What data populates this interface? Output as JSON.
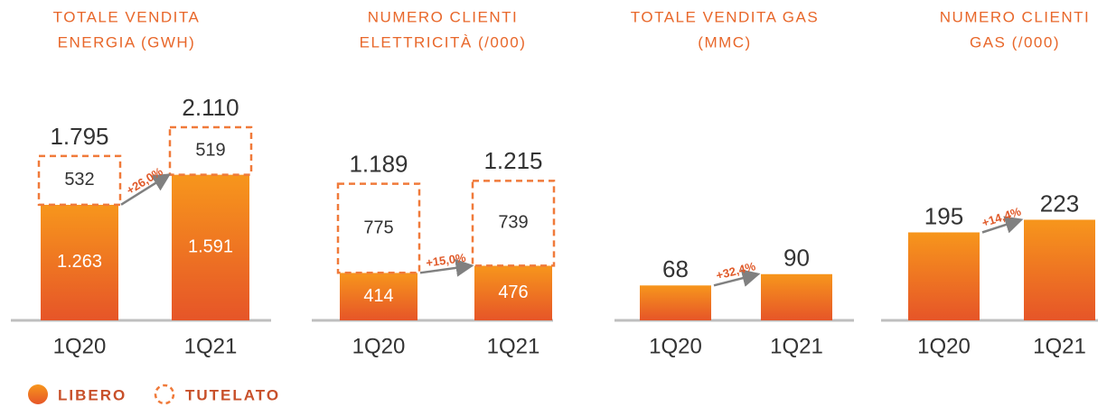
{
  "chart_data": [
    {
      "type": "bar",
      "title_lines": [
        "TOTALE VENDITA",
        "ENERGIA (GWH)"
      ],
      "categories": [
        "1Q20",
        "1Q21"
      ],
      "series": [
        {
          "name": "LIBERO",
          "color": "#f08a20",
          "values": [
            1263,
            1591
          ],
          "value_labels": [
            "1.263",
            "1.591"
          ]
        },
        {
          "name": "TUTELATO",
          "color": "#f07a3a",
          "values": [
            532,
            519
          ]
        }
      ],
      "totals": [
        1795,
        2110
      ],
      "total_labels": [
        "1.795",
        "2.110"
      ],
      "annotation": "+26,0%",
      "ylim": [
        0,
        3450
      ]
    },
    {
      "type": "bar",
      "title_lines": [
        "NUMERO CLIENTI",
        "ELETTRICITÀ (/000)"
      ],
      "categories": [
        "1Q20",
        "1Q21"
      ],
      "series": [
        {
          "color": "#f08a20",
          "values": [
            414,
            476
          ]
        },
        {
          "color": "#f07a3a",
          "values": [
            775,
            739
          ]
        }
      ],
      "totals": [
        1189,
        1215
      ],
      "total_labels": [
        "1.189",
        "1.215"
      ],
      "annotation": "+15,0%",
      "ylim": [
        0,
        2750
      ]
    },
    {
      "type": "bar",
      "title_lines": [
        "TOTALE VENDITA GAS",
        "(MMC)"
      ],
      "categories": [
        "1Q20",
        "1Q21"
      ],
      "series": [
        {
          "color": "#f08a20",
          "values": [
            68,
            90
          ]
        }
      ],
      "annotation": "+32,4%",
      "ylim": [
        0,
        615
      ]
    },
    {
      "type": "bar",
      "title_lines": [
        "NUMERO CLIENTI",
        "GAS (/000)"
      ],
      "categories": [
        "1Q20",
        "1Q21"
      ],
      "series": [
        {
          "color": "#f08a20",
          "values": [
            195,
            223
          ]
        }
      ],
      "annotation": "+14,4%",
      "ylim": [
        0,
        700
      ]
    }
  ]
}
